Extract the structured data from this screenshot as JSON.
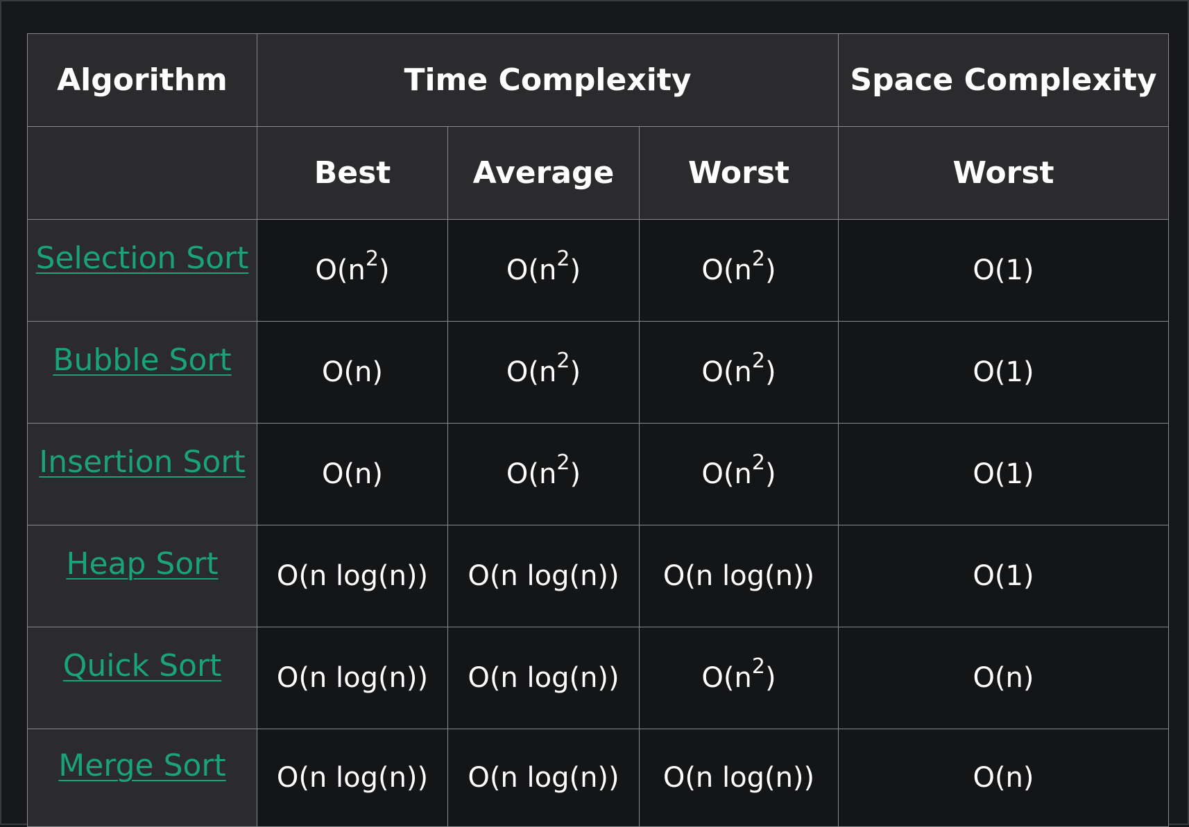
{
  "headers": {
    "algorithm": "Algorithm",
    "time_complexity": "Time Complexity",
    "space_complexity": "Space Complexity",
    "best": "Best",
    "average": "Average",
    "worst": "Worst",
    "space_worst": "Worst"
  },
  "rows": [
    {
      "name": "Selection Sort",
      "best": {
        "base": "O(n",
        "exp": "2",
        "tail": ")"
      },
      "average": {
        "base": "O(n",
        "exp": "2",
        "tail": ")"
      },
      "worst": {
        "base": "O(n",
        "exp": "2",
        "tail": ")"
      },
      "space": {
        "base": "O(1)",
        "exp": "",
        "tail": ""
      }
    },
    {
      "name": "Bubble Sort",
      "best": {
        "base": "O(n)",
        "exp": "",
        "tail": ""
      },
      "average": {
        "base": "O(n",
        "exp": "2",
        "tail": ")"
      },
      "worst": {
        "base": "O(n",
        "exp": "2",
        "tail": ")"
      },
      "space": {
        "base": "O(1)",
        "exp": "",
        "tail": ""
      }
    },
    {
      "name": "Insertion Sort",
      "best": {
        "base": "O(n)",
        "exp": "",
        "tail": ""
      },
      "average": {
        "base": "O(n",
        "exp": "2",
        "tail": ")"
      },
      "worst": {
        "base": "O(n",
        "exp": "2",
        "tail": ")"
      },
      "space": {
        "base": "O(1)",
        "exp": "",
        "tail": ""
      }
    },
    {
      "name": "Heap Sort",
      "best": {
        "base": "O(n log(n))",
        "exp": "",
        "tail": ""
      },
      "average": {
        "base": "O(n log(n))",
        "exp": "",
        "tail": ""
      },
      "worst": {
        "base": "O(n log(n))",
        "exp": "",
        "tail": ""
      },
      "space": {
        "base": "O(1)",
        "exp": "",
        "tail": ""
      }
    },
    {
      "name": "Quick Sort",
      "best": {
        "base": "O(n log(n))",
        "exp": "",
        "tail": ""
      },
      "average": {
        "base": "O(n log(n))",
        "exp": "",
        "tail": ""
      },
      "worst": {
        "base": "O(n",
        "exp": "2",
        "tail": ")"
      },
      "space": {
        "base": "O(n)",
        "exp": "",
        "tail": ""
      }
    },
    {
      "name": "Merge Sort",
      "best": {
        "base": "O(n log(n))",
        "exp": "",
        "tail": ""
      },
      "average": {
        "base": "O(n log(n))",
        "exp": "",
        "tail": ""
      },
      "worst": {
        "base": "O(n log(n))",
        "exp": "",
        "tail": ""
      },
      "space": {
        "base": "O(n)",
        "exp": "",
        "tail": ""
      }
    }
  ],
  "colors": {
    "link": "#1aa37a",
    "header_bg": "#2b2b2e",
    "cell_bg": "#141517",
    "page_bg": "#17181b"
  }
}
